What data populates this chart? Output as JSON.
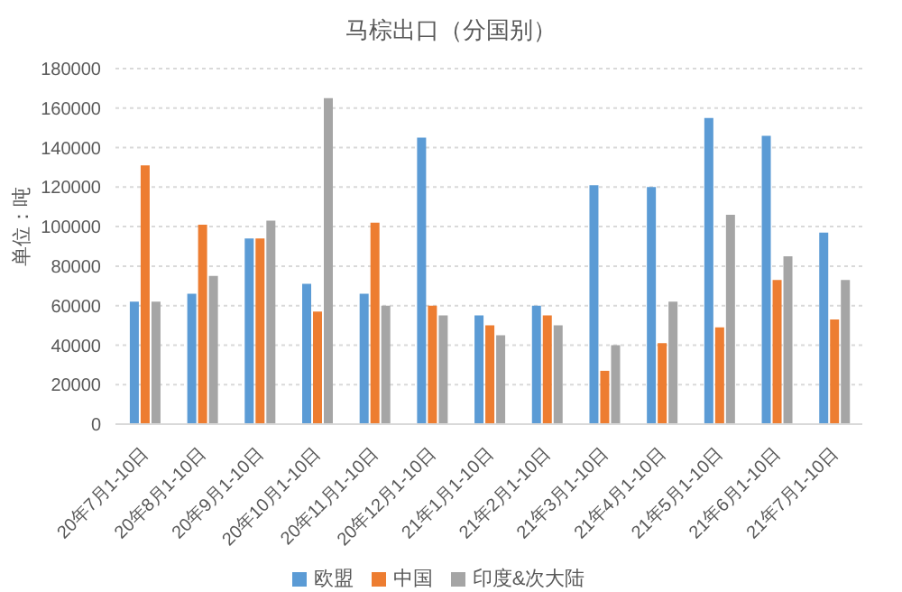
{
  "chart_data": {
    "type": "bar",
    "title": "马棕出口（分国别）",
    "ylabel": "单位：吨",
    "categories": [
      "20年7月1-10日",
      "20年8月1-10日",
      "20年9月1-10日",
      "20年10月1-10日",
      "20年11月1-10日",
      "20年12月1-10日",
      "21年1月1-10日",
      "21年2月1-10日",
      "21年3月1-10日",
      "21年4月1-10日",
      "21年5月1-10日",
      "21年6月1-10日",
      "21年7月1-10日"
    ],
    "series": [
      {
        "name": "欧盟",
        "color": "#5b9bd5",
        "values": [
          62000,
          66000,
          94000,
          71000,
          66000,
          145000,
          55000,
          60000,
          121000,
          120000,
          155000,
          146000,
          97000
        ]
      },
      {
        "name": "中国",
        "color": "#ed7d31",
        "values": [
          131000,
          101000,
          94000,
          57000,
          102000,
          60000,
          50000,
          55000,
          27000,
          41000,
          49000,
          73000,
          53000
        ]
      },
      {
        "name": "印度&次大陆",
        "color": "#a5a5a5",
        "values": [
          62000,
          75000,
          103000,
          165000,
          60000,
          55000,
          45000,
          50000,
          40000,
          62000,
          106000,
          85000,
          73000
        ]
      }
    ],
    "ylim": [
      0,
      180000
    ],
    "yticks": [
      0,
      20000,
      40000,
      60000,
      80000,
      100000,
      120000,
      140000,
      160000,
      180000
    ],
    "grid": "y",
    "legend": "bottom"
  }
}
